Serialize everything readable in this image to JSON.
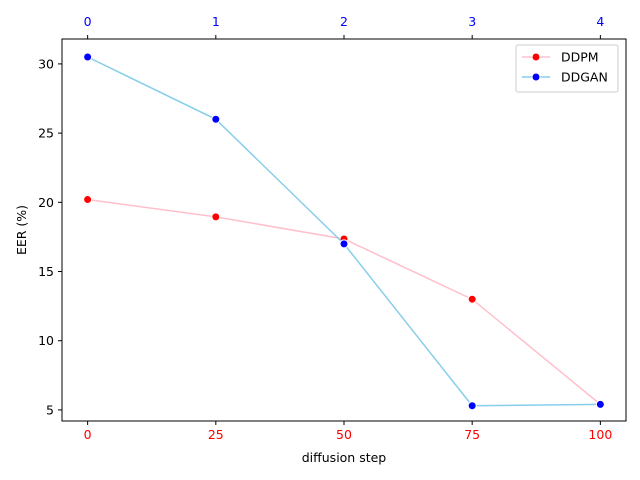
{
  "chart_data": {
    "type": "line",
    "title": "",
    "xlabel": "diffusion step",
    "ylabel": "EER (%)",
    "xlim": [
      -5,
      105
    ],
    "ylim": [
      4.2,
      31.8
    ],
    "x": [
      0,
      25,
      50,
      75,
      100
    ],
    "x_ticks": [
      0,
      25,
      50,
      75,
      100
    ],
    "x_tick_color": "#ff0000",
    "top_x_ticks": [
      0,
      1,
      2,
      3,
      4
    ],
    "top_x_tick_color": "#0000ff",
    "y_ticks": [
      5,
      10,
      15,
      20,
      25,
      30
    ],
    "grid": false,
    "legend_position": "top-right",
    "series": [
      {
        "name": "DDPM",
        "values": [
          20.2,
          18.95,
          17.35,
          13.0,
          5.4
        ],
        "line_color": "#ffc0cb",
        "marker_color": "#ff0000"
      },
      {
        "name": "DDGAN",
        "values": [
          30.5,
          26.0,
          17.0,
          5.3,
          5.4
        ],
        "line_color": "#87ceeb",
        "marker_color": "#0000ff"
      }
    ]
  }
}
